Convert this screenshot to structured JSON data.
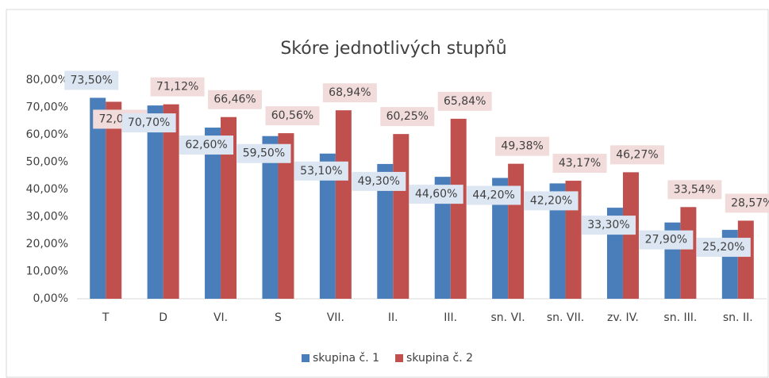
{
  "chart_data": {
    "type": "bar",
    "title": "Skóre jednotlivých stupňů",
    "categories": [
      "T",
      "D",
      "VI.",
      "S",
      "VII.",
      "II.",
      "III.",
      "sn. VI.",
      "sn. VII.",
      "zv. IV.",
      "sn. III.",
      "sn. II."
    ],
    "series": [
      {
        "name": "skupina č. 1",
        "color": "#4a7ebb",
        "values": [
          73.5,
          70.7,
          62.6,
          59.5,
          53.1,
          49.3,
          44.6,
          44.2,
          42.2,
          33.3,
          27.9,
          25.2
        ],
        "value_labels": [
          "73,50%",
          "70,70%",
          "62,60%",
          "59,50%",
          "53,10%",
          "49,30%",
          "44,60%",
          "44,20%",
          "42,20%",
          "33,30%",
          "27,90%",
          "25,20%"
        ]
      },
      {
        "name": "skupina č. 2",
        "color": "#c0504d",
        "values": [
          72.05,
          71.12,
          66.46,
          60.56,
          68.94,
          60.25,
          65.84,
          49.38,
          43.17,
          46.27,
          33.54,
          28.57
        ],
        "value_labels": [
          "72,05%",
          "71,12%",
          "66,46%",
          "60,56%",
          "68,94%",
          "60,25%",
          "65,84%",
          "49,38%",
          "43,17%",
          "46,27%",
          "33,54%",
          "28,57%"
        ]
      }
    ],
    "ylim": [
      0,
      80
    ],
    "yticks": [
      {
        "value": 0,
        "label": "0,00%"
      },
      {
        "value": 10,
        "label": "10,00%"
      },
      {
        "value": 20,
        "label": "20,00%"
      },
      {
        "value": 30,
        "label": "30,00%"
      },
      {
        "value": 40,
        "label": "40,00%"
      },
      {
        "value": 50,
        "label": "50,00%"
      },
      {
        "value": 60,
        "label": "60,00%"
      },
      {
        "value": 70,
        "label": "70,00%"
      },
      {
        "value": 80,
        "label": "80,00%"
      }
    ],
    "grid": false,
    "legend": "bottom"
  }
}
